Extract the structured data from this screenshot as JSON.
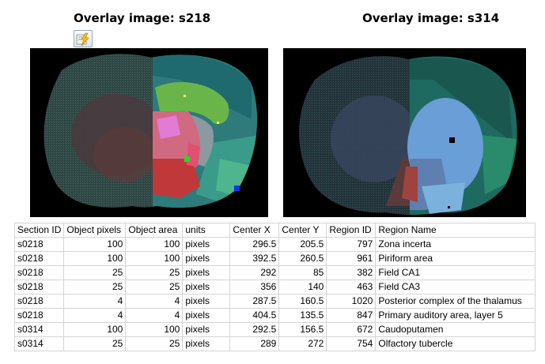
{
  "overlays": {
    "left_title": "Overlay image: s218",
    "right_title": "Overlay image: s314",
    "tool_icon": "lightning-report-icon"
  },
  "colors": {
    "background_panel": "#000000",
    "marker_yellow": "#ffff33",
    "marker_green": "#22dd22",
    "marker_blue": "#1133ee",
    "marker_black": "#000000"
  },
  "table": {
    "headers": [
      "Section ID",
      "Object pixels",
      "Object area",
      "units",
      "Center X",
      "Center Y",
      "Region ID",
      "Region Name"
    ],
    "rows": [
      [
        "s0218",
        "100",
        "100",
        "pixels",
        "296.5",
        "205.5",
        "797",
        "Zona incerta"
      ],
      [
        "s0218",
        "100",
        "100",
        "pixels",
        "392.5",
        "260.5",
        "961",
        "Piriform area"
      ],
      [
        "s0218",
        "25",
        "25",
        "pixels",
        "292",
        "85",
        "382",
        "Field CA1"
      ],
      [
        "s0218",
        "25",
        "25",
        "pixels",
        "356",
        "140",
        "463",
        "Field CA3"
      ],
      [
        "s0218",
        "4",
        "4",
        "pixels",
        "287.5",
        "160.5",
        "1020",
        "Posterior complex of the thalamus"
      ],
      [
        "s0218",
        "4",
        "4",
        "pixels",
        "404.5",
        "135.5",
        "847",
        "Primary auditory area, layer 5"
      ],
      [
        "s0314",
        "100",
        "100",
        "pixels",
        "292.5",
        "156.5",
        "672",
        "Caudoputamen"
      ],
      [
        "s0314",
        "25",
        "25",
        "pixels",
        "289",
        "272",
        "754",
        "Olfactory tubercle"
      ]
    ]
  }
}
